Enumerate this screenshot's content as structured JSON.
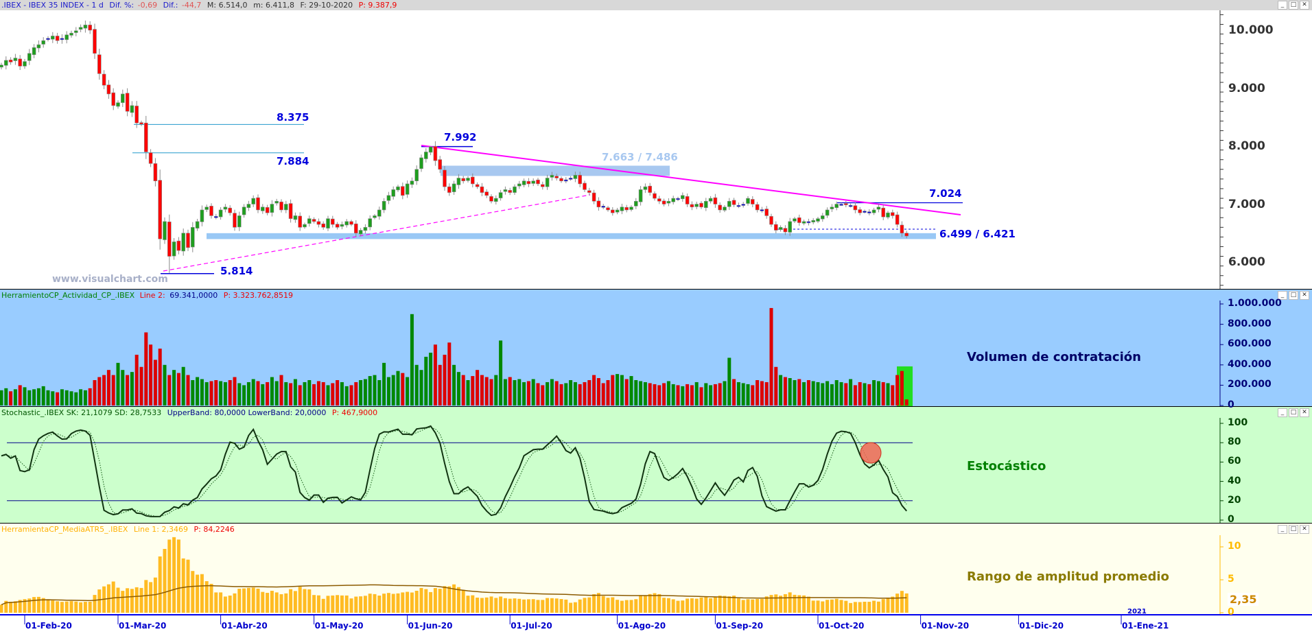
{
  "title_bar": {
    "symbol": ".IBEX - IBEX 35 INDEX -  1 d",
    "dif_pct_label": "Dif. %:",
    "dif_pct": "-0,69",
    "dif_label": "Dif.:",
    "dif": "-44,7",
    "max": "M: 6.514,0",
    "min": "m: 6.411,8",
    "date": "F: 29-10-2020",
    "p": "P: 9.387,9"
  },
  "watermark": "www.visualchart.com",
  "panels": {
    "volume": {
      "name": "HerramientoCP_Actividad_CP_.IBEX",
      "line_label": "Line 2:",
      "line_value": "69.341,0000",
      "p": "P: 3.323.762,8519",
      "caption": "Volumen de contratación",
      "axis": [
        "1.000.000",
        "800.000",
        "600.000",
        "400.000",
        "200.000",
        "0"
      ]
    },
    "stochastic": {
      "name": "Stochastic_.IBEX SK: 21,1079 SD: 28,7533",
      "bands": "UpperBand: 80,0000 LowerBand: 20,0000",
      "p": "P: 467,9000",
      "caption": "Estocástico",
      "axis": [
        "100",
        "80",
        "60",
        "40",
        "20",
        "0"
      ],
      "upper": 80,
      "lower": 20
    },
    "atr": {
      "name": "HerramientaCP_MediaATR5_.IBEX",
      "line": "Line 1: 2,3469",
      "p": "P: 84,2246",
      "caption": "Rango de amplitud promedio",
      "axis": [
        "10",
        "5",
        "0"
      ],
      "current_label": "2,35",
      "current": 2.35
    }
  },
  "price_axis": [
    "10.000",
    "9.000",
    "8.000",
    "7.000",
    "6.000"
  ],
  "annotations": {
    "l8375": "8.375",
    "l7884": "7.884",
    "l7992": "7.992",
    "l5814": "5.814",
    "zone_upper": "7.663 / 7.486",
    "zone_lower": "6.499 / 6.421",
    "l7024": "7.024"
  },
  "x_axis": {
    "year_label": "2021",
    "labels": [
      {
        "text": "01-Feb-20",
        "bar": 5
      },
      {
        "text": "01-Mar-20",
        "bar": 25
      },
      {
        "text": "01-Abr-20",
        "bar": 47
      },
      {
        "text": "01-May-20",
        "bar": 67
      },
      {
        "text": "01-Jun-20",
        "bar": 87
      },
      {
        "text": "01-Jul-20",
        "bar": 109
      },
      {
        "text": "01-Ago-20",
        "bar": 132
      },
      {
        "text": "01-Sep-20",
        "bar": 153
      },
      {
        "text": "01-Oct-20",
        "bar": 175
      },
      {
        "text": "01-Nov-20",
        "bar": 197
      },
      {
        "text": "01-Dic-20",
        "bar": 218
      },
      {
        "text": "01-Ene-21",
        "bar": 240
      }
    ]
  },
  "colors": {
    "up": "#1f9e1f",
    "down": "#ff0000",
    "neutral": "#0000dd",
    "trend": "#ff00ff",
    "zone": "#99c8f5",
    "axis_blue": "#0000cc"
  },
  "chart_data": {
    "type": "candlestick",
    "title": ".IBEX - IBEX 35 INDEX - 1 d",
    "ylim": [
      5500,
      10400
    ],
    "closes": [
      9400,
      9480,
      9450,
      9520,
      9380,
      9460,
      9600,
      9700,
      9750,
      9820,
      9860,
      9900,
      9820,
      9860,
      9920,
      9950,
      9990,
      10050,
      10090,
      10000,
      9600,
      9250,
      9050,
      8900,
      8700,
      8750,
      8900,
      8600,
      8700,
      8400,
      8380,
      7900,
      7700,
      7400,
      6400,
      6700,
      6100,
      6350,
      6200,
      6500,
      6250,
      6600,
      6700,
      6900,
      6950,
      6800,
      6780,
      6900,
      6950,
      6850,
      6600,
      6800,
      6950,
      7000,
      7100,
      6900,
      6950,
      6850,
      7000,
      7050,
      6900,
      7000,
      6750,
      6800,
      6600,
      6650,
      6750,
      6700,
      6650,
      6600,
      6750,
      6650,
      6600,
      6650,
      6700,
      6650,
      6500,
      6550,
      6600,
      6750,
      6800,
      6900,
      7050,
      7150,
      7250,
      7300,
      7150,
      7350,
      7400,
      7600,
      7800,
      7900,
      7990,
      7750,
      7600,
      7300,
      7200,
      7350,
      7450,
      7400,
      7450,
      7350,
      7300,
      7200,
      7150,
      7050,
      7100,
      7200,
      7250,
      7200,
      7300,
      7350,
      7400,
      7350,
      7400,
      7350,
      7300,
      7450,
      7500,
      7450,
      7400,
      7420,
      7450,
      7500,
      7350,
      7250,
      7200,
      7050,
      6950,
      6950,
      6900,
      6850,
      6900,
      6950,
      6900,
      6950,
      7050,
      7250,
      7300,
      7200,
      7100,
      7050,
      7000,
      7050,
      7100,
      7080,
      7150,
      7000,
      6950,
      7000,
      6950,
      7050,
      7100,
      7000,
      6900,
      6950,
      7050,
      6990,
      6980,
      7000,
      7100,
      7000,
      6900,
      6900,
      6800,
      6650,
      6550,
      6600,
      6520,
      6700,
      6750,
      6680,
      6700,
      6680,
      6720,
      6750,
      6800,
      6900,
      6950,
      7000,
      7000,
      6990,
      6980,
      6900,
      6850,
      6880,
      6850,
      6900,
      6950,
      6780,
      6850,
      6800,
      6650,
      6500,
      6450
    ],
    "volumes_thousands": [
      150,
      170,
      140,
      160,
      200,
      180,
      150,
      160,
      170,
      190,
      150,
      140,
      130,
      160,
      150,
      140,
      130,
      160,
      150,
      170,
      250,
      280,
      300,
      350,
      300,
      420,
      350,
      300,
      330,
      500,
      380,
      720,
      600,
      450,
      560,
      400,
      300,
      350,
      320,
      380,
      300,
      250,
      280,
      260,
      230,
      240,
      250,
      240,
      230,
      250,
      280,
      220,
      200,
      230,
      260,
      240,
      210,
      230,
      280,
      240,
      300,
      230,
      220,
      260,
      200,
      230,
      250,
      210,
      240,
      230,
      200,
      220,
      250,
      230,
      190,
      200,
      230,
      250,
      260,
      290,
      300,
      250,
      420,
      280,
      300,
      340,
      320,
      280,
      900,
      400,
      350,
      480,
      520,
      600,
      400,
      500,
      620,
      400,
      330,
      300,
      250,
      290,
      350,
      300,
      280,
      260,
      300,
      640,
      260,
      280,
      250,
      260,
      230,
      240,
      260,
      220,
      200,
      230,
      260,
      240,
      210,
      220,
      250,
      230,
      210,
      230,
      250,
      300,
      270,
      220,
      250,
      300,
      310,
      300,
      260,
      290,
      250,
      240,
      230,
      220,
      210,
      200,
      220,
      240,
      210,
      200,
      190,
      210,
      200,
      230,
      180,
      220,
      200,
      210,
      220,
      240,
      470,
      260,
      230,
      220,
      210,
      200,
      250,
      240,
      230,
      960,
      380,
      300,
      280,
      270,
      250,
      260,
      230,
      250,
      240,
      230,
      220,
      240,
      210,
      250,
      230,
      220,
      260,
      200,
      230,
      220,
      210,
      250,
      240,
      230,
      220,
      200,
      300,
      340,
      60
    ],
    "levels": {
      "resistance_8375": 8375,
      "resistance_7884": 7884,
      "high_7992": 7992,
      "low_5814": 5814,
      "zone_upper": [
        7663,
        7486
      ],
      "zone_lower": [
        6499,
        6421
      ],
      "level_7024": 7024
    },
    "volume_ylim": [
      0,
      1000000
    ],
    "stochastic_ylim": [
      0,
      100
    ],
    "atr_ylim": [
      0,
      13.5
    ]
  }
}
